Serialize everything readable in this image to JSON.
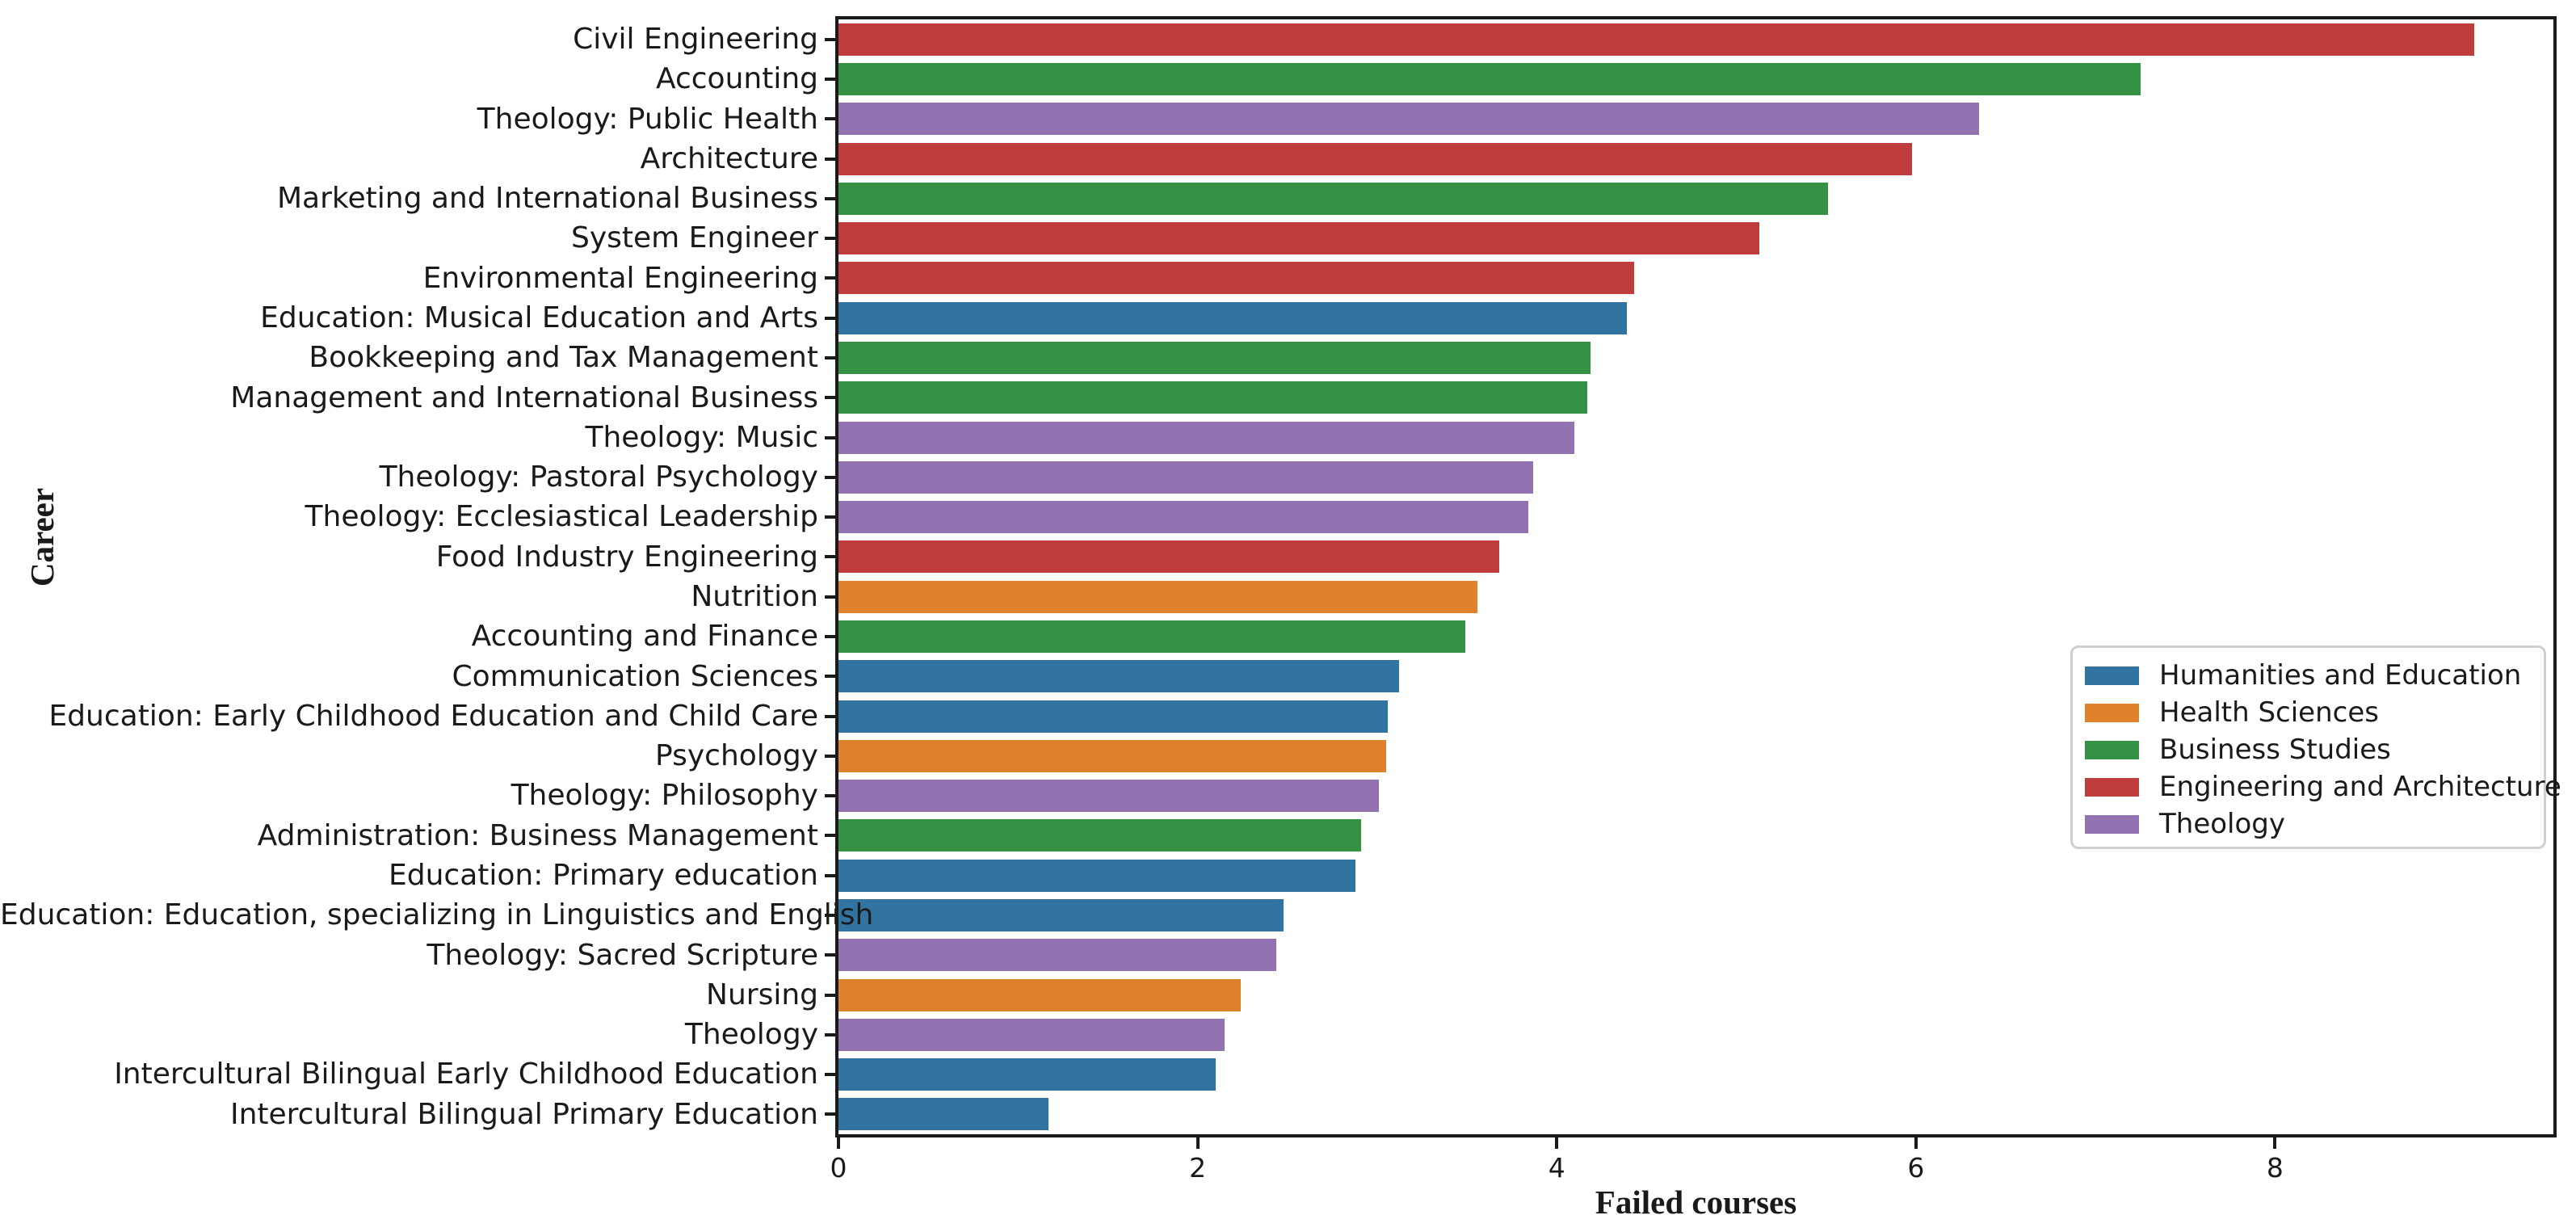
{
  "chart_data": {
    "type": "bar",
    "orientation": "horizontal",
    "title": "",
    "xlabel": "Failed courses",
    "ylabel": "Career",
    "xlim": [
      0,
      9.55
    ],
    "xticks": [
      0,
      2,
      4,
      6,
      8
    ],
    "grid": false,
    "legend": {
      "position": "center-right",
      "entries": [
        {
          "label": "Humanities and Education",
          "color": "#3274a1"
        },
        {
          "label": "Health Sciences",
          "color": "#e1812c"
        },
        {
          "label": "Business Studies",
          "color": "#359245"
        },
        {
          "label": "Engineering and Architecture",
          "color": "#c03d3e"
        },
        {
          "label": "Theology",
          "color": "#9372b2"
        }
      ]
    },
    "bars": [
      {
        "category": "Civil Engineering",
        "value": 9.11,
        "group": "Engineering and Architecture"
      },
      {
        "category": "Accounting",
        "value": 7.25,
        "group": "Business Studies"
      },
      {
        "category": "Theology: Public Health",
        "value": 6.35,
        "group": "Theology"
      },
      {
        "category": "Architecture",
        "value": 5.98,
        "group": "Engineering and Architecture"
      },
      {
        "category": "Marketing and International Business",
        "value": 5.51,
        "group": "Business Studies"
      },
      {
        "category": "System Engineer",
        "value": 5.13,
        "group": "Engineering and Architecture"
      },
      {
        "category": "Environmental Engineering",
        "value": 4.43,
        "group": "Engineering and Architecture"
      },
      {
        "category": "Education: Musical Education and Arts",
        "value": 4.39,
        "group": "Humanities and Education"
      },
      {
        "category": "Bookkeeping and Tax Management",
        "value": 4.19,
        "group": "Business Studies"
      },
      {
        "category": "Management and International Business",
        "value": 4.17,
        "group": "Business Studies"
      },
      {
        "category": "Theology: Music",
        "value": 4.1,
        "group": "Theology"
      },
      {
        "category": "Theology: Pastoral Psychology",
        "value": 3.87,
        "group": "Theology"
      },
      {
        "category": "Theology: Ecclesiastical Leadership",
        "value": 3.84,
        "group": "Theology"
      },
      {
        "category": "Food Industry Engineering",
        "value": 3.68,
        "group": "Engineering and Architecture"
      },
      {
        "category": "Nutrition",
        "value": 3.56,
        "group": "Health Sciences"
      },
      {
        "category": "Accounting and Finance",
        "value": 3.49,
        "group": "Business Studies"
      },
      {
        "category": "Communication Sciences",
        "value": 3.12,
        "group": "Humanities and Education"
      },
      {
        "category": "Education: Early Childhood Education and Child Care",
        "value": 3.06,
        "group": "Humanities and Education"
      },
      {
        "category": "Psychology",
        "value": 3.05,
        "group": "Health Sciences"
      },
      {
        "category": "Theology: Philosophy",
        "value": 3.01,
        "group": "Theology"
      },
      {
        "category": "Administration: Business Management",
        "value": 2.91,
        "group": "Business Studies"
      },
      {
        "category": "Education: Primary education",
        "value": 2.88,
        "group": "Humanities and Education"
      },
      {
        "category": "Education: Education, specializing in Linguistics and English",
        "value": 2.48,
        "group": "Humanities and Education"
      },
      {
        "category": "Theology: Sacred Scripture",
        "value": 2.44,
        "group": "Theology"
      },
      {
        "category": "Nursing",
        "value": 2.24,
        "group": "Health Sciences"
      },
      {
        "category": "Theology",
        "value": 2.15,
        "group": "Theology"
      },
      {
        "category": "Intercultural Bilingual Early Childhood Education",
        "value": 2.1,
        "group": "Humanities and Education"
      },
      {
        "category": "Intercultural Bilingual Primary Education",
        "value": 1.17,
        "group": "Humanities and Education"
      }
    ]
  }
}
